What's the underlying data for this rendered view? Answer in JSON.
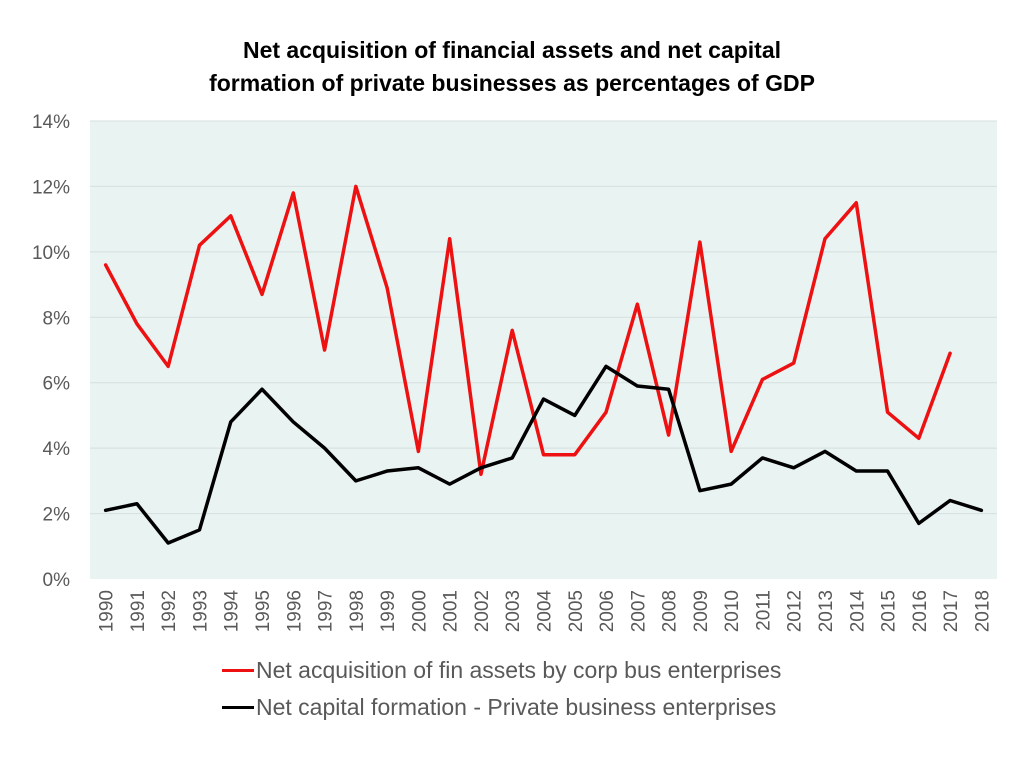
{
  "chart_data": {
    "type": "line",
    "title_lines": [
      "Net acquisition of financial assets and net capital",
      "formation of private businesses as percentages of GDP"
    ],
    "x": [
      "1990",
      "1991",
      "1992",
      "1993",
      "1994",
      "1995",
      "1996",
      "1997",
      "1998",
      "1999",
      "2000",
      "2001",
      "2002",
      "2003",
      "2004",
      "2005",
      "2006",
      "2007",
      "2008",
      "2009",
      "2010",
      "2011",
      "2012",
      "2013",
      "2014",
      "2015",
      "2016",
      "2017",
      "2018"
    ],
    "ylim": [
      0,
      14
    ],
    "yticks": [
      0,
      2,
      4,
      6,
      8,
      10,
      12,
      14
    ],
    "ytick_labels": [
      "0%",
      "2%",
      "4%",
      "6%",
      "8%",
      "10%",
      "12%",
      "14%"
    ],
    "grid": true,
    "plot_background": "#e8f3f2",
    "legend_position": "bottom",
    "series": [
      {
        "name": "Net acquisition of fin assets by corp bus enterprises",
        "color": "#ee1111",
        "values": [
          9.6,
          7.8,
          6.5,
          10.2,
          11.1,
          8.7,
          11.8,
          7.0,
          12.0,
          8.9,
          3.9,
          10.4,
          3.2,
          7.6,
          3.8,
          3.8,
          5.1,
          8.4,
          4.4,
          10.3,
          3.9,
          6.1,
          6.6,
          10.4,
          11.5,
          5.1,
          4.3,
          6.9,
          null
        ]
      },
      {
        "name": "Net capital formation - Private business enterprises",
        "color": "#000000",
        "values": [
          2.1,
          2.3,
          1.1,
          1.5,
          4.8,
          5.8,
          4.8,
          4.0,
          3.0,
          3.3,
          3.4,
          2.9,
          3.4,
          3.7,
          5.5,
          5.0,
          6.5,
          5.9,
          5.8,
          2.7,
          2.9,
          3.7,
          3.4,
          3.9,
          3.3,
          3.3,
          1.7,
          2.4,
          2.1
        ]
      }
    ]
  }
}
